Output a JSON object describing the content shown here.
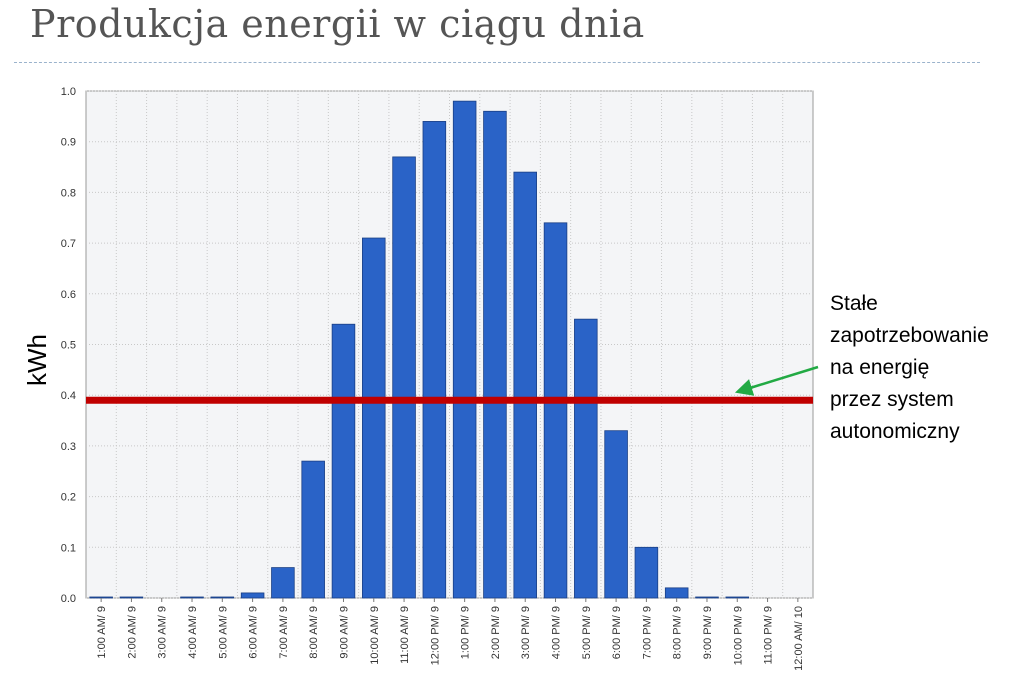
{
  "title": "Produkcja energii w ciągu dnia",
  "annotation": {
    "lines": [
      "Stałe",
      "zapotrzebowanie",
      "na energię",
      "przez system",
      "autonomiczny"
    ]
  },
  "chart_data": {
    "type": "bar",
    "ylabel": "kWh",
    "ylim": [
      0,
      1.0
    ],
    "yticks": [
      "0.0",
      "0.1",
      "0.2",
      "0.3",
      "0.4",
      "0.5",
      "0.6",
      "0.7",
      "0.8",
      "0.9",
      "1.0"
    ],
    "categories": [
      "1:00 AM/ 9",
      "2:00 AM/ 9",
      "3:00 AM/ 9",
      "4:00 AM/ 9",
      "5:00 AM/ 9",
      "6:00 AM/ 9",
      "7:00 AM/ 9",
      "8:00 AM/ 9",
      "9:00 AM/ 9",
      "10:00 AM/ 9",
      "11:00 AM/ 9",
      "12:00 PM/ 9",
      "1:00 PM/ 9",
      "2:00 PM/ 9",
      "3:00 PM/ 9",
      "4:00 PM/ 9",
      "5:00 PM/ 9",
      "6:00 PM/ 9",
      "7:00 PM/ 9",
      "8:00 PM/ 9",
      "9:00 PM/ 9",
      "10:00 PM/ 9",
      "11:00 PM/ 9",
      "12:00 AM/ 10"
    ],
    "values": [
      0.002,
      0.002,
      0,
      0.002,
      0.002,
      0.01,
      0.06,
      0.27,
      0.54,
      0.71,
      0.87,
      0.94,
      0.98,
      0.96,
      0.84,
      0.74,
      0.55,
      0.33,
      0.1,
      0.02,
      0.002,
      0.002,
      0,
      0
    ],
    "reference_line": {
      "value": 0.39
    },
    "grid": true,
    "colors": {
      "bar": "#2a63c7",
      "bar_edge": "#1a3f85",
      "line": "#c00000",
      "arrow": "#22aa44",
      "plot_bg": "#f4f5f7",
      "grid": "#c8c8c8"
    }
  }
}
